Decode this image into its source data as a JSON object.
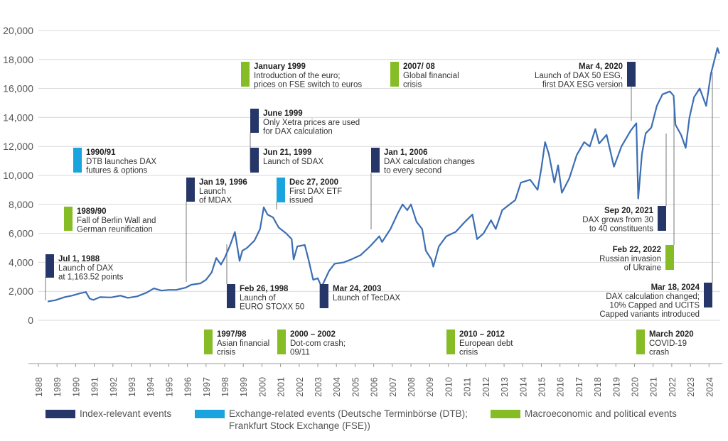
{
  "chart_data": {
    "type": "line",
    "ylim": [
      0,
      20000
    ],
    "xlim": [
      1988,
      2024.6
    ],
    "y_ticks": [
      "20,000",
      "18,000",
      "16,000",
      "14,000",
      "12,000",
      "10,000",
      "8,000",
      "6,000",
      "4,000",
      "2,000",
      "0"
    ],
    "x_ticks": [
      "1988",
      "1989",
      "1990",
      "1991",
      "1992",
      "1993",
      "1994",
      "1995",
      "1996",
      "1997",
      "1998",
      "1999",
      "2000",
      "2001",
      "2002",
      "2003",
      "2004",
      "2005",
      "2006",
      "2007",
      "2008",
      "2009",
      "2010",
      "2011",
      "2012",
      "2013",
      "2014",
      "2015",
      "2016",
      "2017",
      "2018",
      "2019",
      "2020",
      "2021",
      "2022",
      "2023",
      "2024"
    ],
    "grid": true,
    "series": [
      {
        "color": "#3c6eb4",
        "points": [
          [
            1988.5,
            1300
          ],
          [
            1988.9,
            1380
          ],
          [
            1989.4,
            1600
          ],
          [
            1989.8,
            1700
          ],
          [
            1990.2,
            1850
          ],
          [
            1990.55,
            1950
          ],
          [
            1990.75,
            1500
          ],
          [
            1990.95,
            1400
          ],
          [
            1991.3,
            1600
          ],
          [
            1991.9,
            1580
          ],
          [
            1992.4,
            1700
          ],
          [
            1992.8,
            1550
          ],
          [
            1993.3,
            1650
          ],
          [
            1993.8,
            1900
          ],
          [
            1994.2,
            2200
          ],
          [
            1994.6,
            2050
          ],
          [
            1995.0,
            2100
          ],
          [
            1995.4,
            2100
          ],
          [
            1995.9,
            2250
          ],
          [
            1996.2,
            2450
          ],
          [
            1996.7,
            2550
          ],
          [
            1997.0,
            2800
          ],
          [
            1997.3,
            3300
          ],
          [
            1997.55,
            4300
          ],
          [
            1997.8,
            3850
          ],
          [
            1998.0,
            4300
          ],
          [
            1998.3,
            5200
          ],
          [
            1998.55,
            6100
          ],
          [
            1998.8,
            4100
          ],
          [
            1998.95,
            4800
          ],
          [
            1999.2,
            5000
          ],
          [
            1999.6,
            5500
          ],
          [
            1999.9,
            6300
          ],
          [
            2000.1,
            7800
          ],
          [
            2000.3,
            7300
          ],
          [
            2000.6,
            7100
          ],
          [
            2000.9,
            6400
          ],
          [
            2001.3,
            6000
          ],
          [
            2001.6,
            5600
          ],
          [
            2001.7,
            4200
          ],
          [
            2001.9,
            5100
          ],
          [
            2002.3,
            5200
          ],
          [
            2002.5,
            4200
          ],
          [
            2002.75,
            2800
          ],
          [
            2003.0,
            2900
          ],
          [
            2003.2,
            2300
          ],
          [
            2003.6,
            3400
          ],
          [
            2003.9,
            3900
          ],
          [
            2004.4,
            4000
          ],
          [
            2004.8,
            4200
          ],
          [
            2005.3,
            4500
          ],
          [
            2005.8,
            5100
          ],
          [
            2006.3,
            5800
          ],
          [
            2006.45,
            5400
          ],
          [
            2006.9,
            6300
          ],
          [
            2007.3,
            7400
          ],
          [
            2007.55,
            8000
          ],
          [
            2007.8,
            7600
          ],
          [
            2008.0,
            8000
          ],
          [
            2008.3,
            6800
          ],
          [
            2008.6,
            6300
          ],
          [
            2008.8,
            4800
          ],
          [
            2009.1,
            4200
          ],
          [
            2009.2,
            3700
          ],
          [
            2009.5,
            5100
          ],
          [
            2009.9,
            5800
          ],
          [
            2010.4,
            6100
          ],
          [
            2010.9,
            6800
          ],
          [
            2011.3,
            7300
          ],
          [
            2011.55,
            5600
          ],
          [
            2011.9,
            6000
          ],
          [
            2012.3,
            6900
          ],
          [
            2012.55,
            6300
          ],
          [
            2012.9,
            7600
          ],
          [
            2013.3,
            8000
          ],
          [
            2013.6,
            8300
          ],
          [
            2013.9,
            9500
          ],
          [
            2014.4,
            9700
          ],
          [
            2014.8,
            9000
          ],
          [
            2015.0,
            10500
          ],
          [
            2015.2,
            12300
          ],
          [
            2015.4,
            11500
          ],
          [
            2015.7,
            9500
          ],
          [
            2015.9,
            10700
          ],
          [
            2016.1,
            8800
          ],
          [
            2016.5,
            9800
          ],
          [
            2016.9,
            11400
          ],
          [
            2017.3,
            12300
          ],
          [
            2017.6,
            12000
          ],
          [
            2017.9,
            13200
          ],
          [
            2018.1,
            12200
          ],
          [
            2018.5,
            12800
          ],
          [
            2018.9,
            10600
          ],
          [
            2019.3,
            12000
          ],
          [
            2019.8,
            13100
          ],
          [
            2020.1,
            13600
          ],
          [
            2020.2,
            8400
          ],
          [
            2020.4,
            11500
          ],
          [
            2020.6,
            12900
          ],
          [
            2020.9,
            13300
          ],
          [
            2021.2,
            14800
          ],
          [
            2021.5,
            15600
          ],
          [
            2021.9,
            15800
          ],
          [
            2022.1,
            15500
          ],
          [
            2022.2,
            13500
          ],
          [
            2022.5,
            12800
          ],
          [
            2022.75,
            11900
          ],
          [
            2022.95,
            14000
          ],
          [
            2023.2,
            15400
          ],
          [
            2023.5,
            16000
          ],
          [
            2023.85,
            14800
          ],
          [
            2024.1,
            17000
          ],
          [
            2024.3,
            18000
          ],
          [
            2024.45,
            18800
          ],
          [
            2024.55,
            18400
          ]
        ]
      }
    ],
    "events": [
      {
        "date": "Jul 1, 1988",
        "text": "Launch of DAX\nat 1,163.52 points",
        "category": "index",
        "x": 1988.5,
        "y": 1163.52
      },
      {
        "date": "1989/90",
        "text": "Fall of Berlin Wall and\nGerman reunification",
        "category": "macro"
      },
      {
        "date": "1990/91",
        "text": "DTB launches DAX\nfutures & options",
        "category": "exchange"
      },
      {
        "date": "Jan 19, 1996",
        "text": "Launch\nof MDAX",
        "category": "index",
        "x": 1996.05,
        "y": 2480
      },
      {
        "date": "Feb 26, 1998",
        "text": "Launch of\nEURO STOXX 50",
        "category": "index",
        "x": 1998.15,
        "y": 4800
      },
      {
        "date": "1997/98",
        "text": "Asian financial\ncrisis",
        "category": "macro"
      },
      {
        "date": "January 1999",
        "text": "Introduction of the euro;\nprices on FSE switch to euros",
        "category": "macro"
      },
      {
        "date": "June 1999",
        "text": "Only Xetra prices are used\nfor DAX calculation",
        "category": "index",
        "x": 1999.45,
        "y": 5400
      },
      {
        "date": "Jun 21, 1999",
        "text": "Launch of SDAX",
        "category": "index",
        "x": 1999.47,
        "y": 5400
      },
      {
        "date": "Dec 27, 2000",
        "text": "First DAX ETF\nissued",
        "category": "exchange",
        "x": 2001.0,
        "y": 6400
      },
      {
        "date": "2000 – 2002",
        "text": "Dot-com crash;\n09/11",
        "category": "macro"
      },
      {
        "date": "Mar 24, 2003",
        "text": "Launch of TecDAX",
        "category": "index",
        "x": 2003.23,
        "y": 2400
      },
      {
        "date": "Jan 1, 2006",
        "text": "DAX calculation changes\nto every second",
        "category": "index",
        "x": 2006.0,
        "y": 5400
      },
      {
        "date": "2007/ 08",
        "text": "Global financial\ncrisis",
        "category": "macro"
      },
      {
        "date": "2010 – 2012",
        "text": "European debt\ncrisis",
        "category": "macro"
      },
      {
        "date": "Mar 4, 2020",
        "text": "Launch of DAX 50 ESG,\nfirst DAX ESG version",
        "category": "index",
        "x": 2020.17,
        "y": 11800
      },
      {
        "date": "March 2020",
        "text": "COVID-19\ncrash",
        "category": "macro"
      },
      {
        "date": "Sep 20, 2021",
        "text": "DAX grows from 30\nto 40 constituents",
        "category": "index",
        "x": 2021.72,
        "y": 15600
      },
      {
        "date": "Feb 22, 2022",
        "text": "Russian invasion\nof Ukraine",
        "category": "macro",
        "x": 2022.14,
        "y": 14700
      },
      {
        "date": "Mar 18, 2024",
        "text": "DAX calculation changed;\n10% Capped and UCITS\nCapped variants introduced",
        "category": "index",
        "x": 2024.21,
        "y": 17900
      }
    ],
    "legend": [
      {
        "label": "Index-relevant events",
        "color": "#263668"
      },
      {
        "label": "Exchange-related events (Deutsche Terminbörse (DTB);\nFrankfurt Stock Exchange (FSE))",
        "color": "#19a3df"
      },
      {
        "label": "Macroeconomic and political events",
        "color": "#86bc25"
      }
    ]
  }
}
